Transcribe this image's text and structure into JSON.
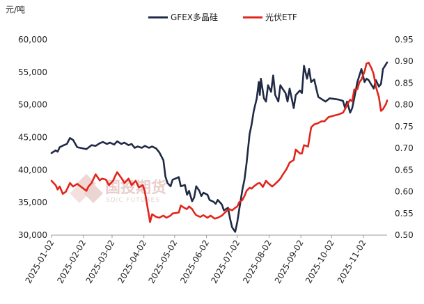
{
  "chart_data": {
    "type": "line",
    "unit_label": "元/吨",
    "legend": [
      {
        "name": "GFEX多晶硅",
        "color": "#1f2a44"
      },
      {
        "name": "光伏ETF",
        "color": "#e0261b"
      }
    ],
    "watermark": {
      "text": "国投期货",
      "sub": "SDIC FUTURES"
    },
    "x_ticks": [
      "2025-01-02",
      "2025-02-02",
      "2025-03-02",
      "2025-04-02",
      "2025-05-02",
      "2025-06-02",
      "2025-07-02",
      "2025-08-02",
      "2025-09-02",
      "2025-10-02",
      "2025-11-02"
    ],
    "xlim": [
      "2025-01-02",
      "2025-11-25"
    ],
    "y_left": {
      "lim": [
        30000,
        60000
      ],
      "ticks": [
        "30,000",
        "35,000",
        "40,000",
        "45,000",
        "50,000",
        "55,000",
        "60,000"
      ]
    },
    "y_right": {
      "lim": [
        0.5,
        0.95
      ],
      "ticks": [
        "0.50",
        "0.55",
        "0.60",
        "0.65",
        "0.70",
        "0.75",
        "0.80",
        "0.85",
        "0.90",
        "0.95"
      ]
    },
    "series": [
      {
        "name": "GFEX多晶硅",
        "axis": "left",
        "color": "#1f2a44",
        "points": [
          [
            "2025-01-02",
            42600
          ],
          [
            "2025-01-06",
            43000
          ],
          [
            "2025-01-08",
            42800
          ],
          [
            "2025-01-10",
            43500
          ],
          [
            "2025-01-14",
            43800
          ],
          [
            "2025-01-17",
            44000
          ],
          [
            "2025-01-20",
            44900
          ],
          [
            "2025-01-23",
            44600
          ],
          [
            "2025-01-27",
            43500
          ],
          [
            "2025-02-05",
            43200
          ],
          [
            "2025-02-10",
            43800
          ],
          [
            "2025-02-14",
            43700
          ],
          [
            "2025-02-18",
            44100
          ],
          [
            "2025-02-21",
            44300
          ],
          [
            "2025-02-25",
            44000
          ],
          [
            "2025-02-28",
            44200
          ],
          [
            "2025-03-04",
            43900
          ],
          [
            "2025-03-07",
            44400
          ],
          [
            "2025-03-11",
            44000
          ],
          [
            "2025-03-14",
            44200
          ],
          [
            "2025-03-18",
            43800
          ],
          [
            "2025-03-21",
            44000
          ],
          [
            "2025-03-24",
            43400
          ],
          [
            "2025-03-27",
            43600
          ],
          [
            "2025-03-31",
            43400
          ],
          [
            "2025-04-03",
            43700
          ],
          [
            "2025-04-07",
            43400
          ],
          [
            "2025-04-10",
            43600
          ],
          [
            "2025-04-14",
            43300
          ],
          [
            "2025-04-17",
            42700
          ],
          [
            "2025-04-21",
            41500
          ],
          [
            "2025-04-23",
            39000
          ],
          [
            "2025-04-25",
            38000
          ],
          [
            "2025-04-28",
            37500
          ],
          [
            "2025-04-30",
            38500
          ],
          [
            "2025-05-06",
            38900
          ],
          [
            "2025-05-08",
            37500
          ],
          [
            "2025-05-12",
            37700
          ],
          [
            "2025-05-14",
            36200
          ],
          [
            "2025-05-16",
            36800
          ],
          [
            "2025-05-19",
            35200
          ],
          [
            "2025-05-21",
            35800
          ],
          [
            "2025-05-23",
            37500
          ],
          [
            "2025-05-26",
            36800
          ],
          [
            "2025-05-28",
            36000
          ],
          [
            "2025-05-30",
            36500
          ],
          [
            "2025-06-03",
            36200
          ],
          [
            "2025-06-05",
            35400
          ],
          [
            "2025-06-09",
            35100
          ],
          [
            "2025-06-11",
            34800
          ],
          [
            "2025-06-13",
            35400
          ],
          [
            "2025-06-17",
            34700
          ],
          [
            "2025-06-19",
            33800
          ],
          [
            "2025-06-23",
            34200
          ],
          [
            "2025-06-25",
            32500
          ],
          [
            "2025-06-27",
            31200
          ],
          [
            "2025-06-30",
            30500
          ],
          [
            "2025-07-02",
            32000
          ],
          [
            "2025-07-04",
            34000
          ],
          [
            "2025-07-07",
            37000
          ],
          [
            "2025-07-09",
            38500
          ],
          [
            "2025-07-11",
            41000
          ],
          [
            "2025-07-14",
            45500
          ],
          [
            "2025-07-16",
            47000
          ],
          [
            "2025-07-18",
            49000
          ],
          [
            "2025-07-21",
            51000
          ],
          [
            "2025-07-23",
            53500
          ],
          [
            "2025-07-24",
            51500
          ],
          [
            "2025-07-25",
            54000
          ],
          [
            "2025-07-28",
            51000
          ],
          [
            "2025-07-30",
            50500
          ],
          [
            "2025-08-01",
            53000
          ],
          [
            "2025-08-04",
            52000
          ],
          [
            "2025-08-06",
            54500
          ],
          [
            "2025-08-08",
            51500
          ],
          [
            "2025-08-11",
            50500
          ],
          [
            "2025-08-13",
            53000
          ],
          [
            "2025-08-15",
            52500
          ],
          [
            "2025-08-18",
            51800
          ],
          [
            "2025-08-20",
            50500
          ],
          [
            "2025-08-22",
            52500
          ],
          [
            "2025-08-26",
            49500
          ],
          [
            "2025-08-28",
            51500
          ],
          [
            "2025-09-01",
            52200
          ],
          [
            "2025-09-03",
            51800
          ],
          [
            "2025-09-05",
            56000
          ],
          [
            "2025-09-08",
            54000
          ],
          [
            "2025-09-10",
            55500
          ],
          [
            "2025-09-12",
            53500
          ],
          [
            "2025-09-15",
            53900
          ],
          [
            "2025-09-17",
            52500
          ],
          [
            "2025-09-19",
            51200
          ],
          [
            "2025-09-23",
            50800
          ],
          [
            "2025-09-26",
            50500
          ],
          [
            "2025-09-30",
            51000
          ],
          [
            "2025-10-09",
            50800
          ],
          [
            "2025-10-13",
            50600
          ],
          [
            "2025-10-15",
            49500
          ],
          [
            "2025-10-17",
            50500
          ],
          [
            "2025-10-20",
            48800
          ],
          [
            "2025-10-22",
            49500
          ],
          [
            "2025-10-24",
            51000
          ],
          [
            "2025-10-27",
            53500
          ],
          [
            "2025-10-29",
            54500
          ],
          [
            "2025-10-31",
            55500
          ],
          [
            "2025-11-03",
            53500
          ],
          [
            "2025-11-05",
            54000
          ],
          [
            "2025-11-07",
            53800
          ],
          [
            "2025-11-10",
            53000
          ],
          [
            "2025-11-12",
            52500
          ],
          [
            "2025-11-14",
            53800
          ],
          [
            "2025-11-17",
            52800
          ],
          [
            "2025-11-19",
            53200
          ],
          [
            "2025-11-21",
            55500
          ],
          [
            "2025-11-25",
            56500
          ]
        ]
      },
      {
        "name": "光伏ETF",
        "axis": "right",
        "color": "#e0261b",
        "points": [
          [
            "2025-01-02",
            0.625
          ],
          [
            "2025-01-06",
            0.615
          ],
          [
            "2025-01-08",
            0.605
          ],
          [
            "2025-01-10",
            0.612
          ],
          [
            "2025-01-13",
            0.595
          ],
          [
            "2025-01-16",
            0.6
          ],
          [
            "2025-01-20",
            0.62
          ],
          [
            "2025-01-23",
            0.612
          ],
          [
            "2025-01-27",
            0.618
          ],
          [
            "2025-02-05",
            0.602
          ],
          [
            "2025-02-07",
            0.612
          ],
          [
            "2025-02-10",
            0.62
          ],
          [
            "2025-02-12",
            0.63
          ],
          [
            "2025-02-14",
            0.64
          ],
          [
            "2025-02-18",
            0.626
          ],
          [
            "2025-02-20",
            0.63
          ],
          [
            "2025-02-24",
            0.628
          ],
          [
            "2025-02-27",
            0.615
          ],
          [
            "2025-03-03",
            0.625
          ],
          [
            "2025-03-05",
            0.636
          ],
          [
            "2025-03-07",
            0.645
          ],
          [
            "2025-03-11",
            0.632
          ],
          [
            "2025-03-14",
            0.62
          ],
          [
            "2025-03-18",
            0.63
          ],
          [
            "2025-03-21",
            0.615
          ],
          [
            "2025-03-25",
            0.625
          ],
          [
            "2025-03-28",
            0.61
          ],
          [
            "2025-04-01",
            0.615
          ],
          [
            "2025-04-03",
            0.6
          ],
          [
            "2025-04-07",
            0.545
          ],
          [
            "2025-04-08",
            0.53
          ],
          [
            "2025-04-10",
            0.548
          ],
          [
            "2025-04-14",
            0.542
          ],
          [
            "2025-04-17",
            0.54
          ],
          [
            "2025-04-21",
            0.545
          ],
          [
            "2025-04-24",
            0.54
          ],
          [
            "2025-04-28",
            0.545
          ],
          [
            "2025-04-30",
            0.55
          ],
          [
            "2025-05-06",
            0.552
          ],
          [
            "2025-05-08",
            0.568
          ],
          [
            "2025-05-12",
            0.562
          ],
          [
            "2025-05-14",
            0.56
          ],
          [
            "2025-05-16",
            0.566
          ],
          [
            "2025-05-19",
            0.56
          ],
          [
            "2025-05-21",
            0.552
          ],
          [
            "2025-05-23",
            0.546
          ],
          [
            "2025-05-27",
            0.542
          ],
          [
            "2025-05-30",
            0.546
          ],
          [
            "2025-06-03",
            0.54
          ],
          [
            "2025-06-06",
            0.545
          ],
          [
            "2025-06-10",
            0.538
          ],
          [
            "2025-06-13",
            0.54
          ],
          [
            "2025-06-17",
            0.545
          ],
          [
            "2025-06-20",
            0.552
          ],
          [
            "2025-06-24",
            0.56
          ],
          [
            "2025-06-27",
            0.557
          ],
          [
            "2025-06-30",
            0.563
          ],
          [
            "2025-07-02",
            0.566
          ],
          [
            "2025-07-04",
            0.576
          ],
          [
            "2025-07-07",
            0.581
          ],
          [
            "2025-07-09",
            0.59
          ],
          [
            "2025-07-11",
            0.602
          ],
          [
            "2025-07-14",
            0.609
          ],
          [
            "2025-07-16",
            0.607
          ],
          [
            "2025-07-18",
            0.612
          ],
          [
            "2025-07-22",
            0.619
          ],
          [
            "2025-07-24",
            0.62
          ],
          [
            "2025-07-27",
            0.611
          ],
          [
            "2025-07-30",
            0.625
          ],
          [
            "2025-08-01",
            0.62
          ],
          [
            "2025-08-05",
            0.612
          ],
          [
            "2025-08-08",
            0.618
          ],
          [
            "2025-08-11",
            0.625
          ],
          [
            "2025-08-13",
            0.63
          ],
          [
            "2025-08-15",
            0.638
          ],
          [
            "2025-08-19",
            0.652
          ],
          [
            "2025-08-22",
            0.667
          ],
          [
            "2025-08-26",
            0.673
          ],
          [
            "2025-08-28",
            0.697
          ],
          [
            "2025-09-01",
            0.688
          ],
          [
            "2025-09-03",
            0.688
          ],
          [
            "2025-09-05",
            0.707
          ],
          [
            "2025-09-09",
            0.704
          ],
          [
            "2025-09-12",
            0.748
          ],
          [
            "2025-09-15",
            0.755
          ],
          [
            "2025-09-18",
            0.757
          ],
          [
            "2025-09-22",
            0.762
          ],
          [
            "2025-09-25",
            0.762
          ],
          [
            "2025-09-29",
            0.772
          ],
          [
            "2025-10-09",
            0.778
          ],
          [
            "2025-10-13",
            0.782
          ],
          [
            "2025-10-15",
            0.79
          ],
          [
            "2025-10-17",
            0.8
          ],
          [
            "2025-10-20",
            0.812
          ],
          [
            "2025-10-22",
            0.808
          ],
          [
            "2025-10-24",
            0.835
          ],
          [
            "2025-10-27",
            0.836
          ],
          [
            "2025-10-29",
            0.852
          ],
          [
            "2025-10-31",
            0.858
          ],
          [
            "2025-11-03",
            0.877
          ],
          [
            "2025-11-05",
            0.895
          ],
          [
            "2025-11-07",
            0.897
          ],
          [
            "2025-11-10",
            0.883
          ],
          [
            "2025-11-12",
            0.87
          ],
          [
            "2025-11-14",
            0.842
          ],
          [
            "2025-11-17",
            0.818
          ],
          [
            "2025-11-19",
            0.786
          ],
          [
            "2025-11-21",
            0.79
          ],
          [
            "2025-11-24",
            0.802
          ],
          [
            "2025-11-25",
            0.81
          ]
        ]
      }
    ]
  }
}
